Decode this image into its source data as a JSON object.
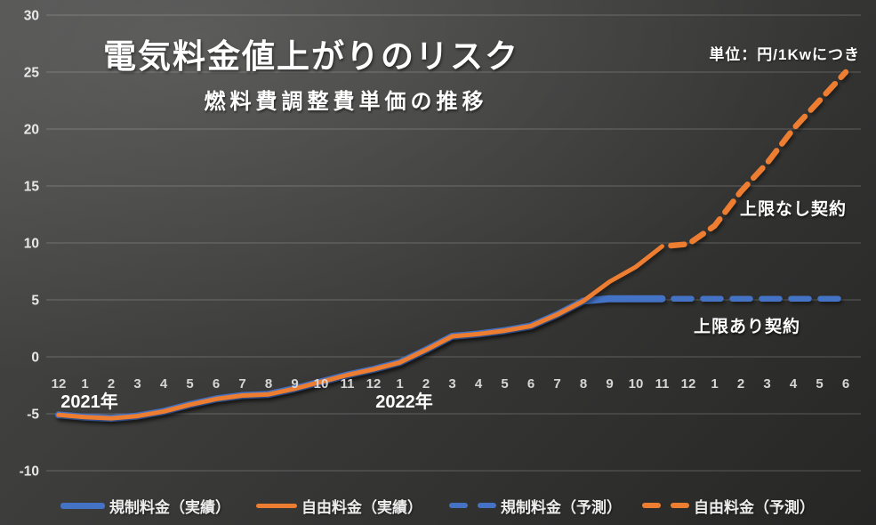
{
  "header": {
    "title": "電気料金値上がりのリスク",
    "subtitle": "燃料費調整費単価の推移",
    "unit_note": "単位：円/1Kwにつき"
  },
  "annotations": {
    "no_cap_label": "上限なし契約",
    "with_cap_label": "上限あり契約"
  },
  "colors": {
    "regulated_blue": "#4472C4",
    "free_orange": "#ED7D31",
    "gridline": "rgba(255,255,255,0.22)",
    "axis_text": "#e8e8e8",
    "month_text": "#d6d6d6",
    "year_text": "#ffffff"
  },
  "chart_data": {
    "type": "line",
    "title": "電気料金値上がりのリスク",
    "subtitle": "燃料費調整費単価の推移",
    "unit": "円/1Kwにつき",
    "grid": true,
    "ylim": [
      -10,
      30
    ],
    "y_ticks": [
      30,
      25,
      20,
      15,
      10,
      5,
      0,
      -5,
      -10
    ],
    "categories": [
      "12",
      "1",
      "2",
      "3",
      "4",
      "5",
      "6",
      "7",
      "8",
      "9",
      "10",
      "11",
      "12",
      "1",
      "2",
      "3",
      "4",
      "5",
      "6",
      "7",
      "8",
      "9",
      "10",
      "11",
      "12",
      "1",
      "2",
      "3",
      "4",
      "5",
      "6"
    ],
    "year_markers": [
      {
        "label": "2021年",
        "index": 1
      },
      {
        "label": "2022年",
        "index": 13
      }
    ],
    "series": [
      {
        "name": "規制料金（実績）",
        "style": "solid",
        "color": "#4472C4",
        "stroke_width": 8,
        "start_index": 0,
        "values": [
          -5.1,
          -5.3,
          -5.4,
          -5.2,
          -4.8,
          -4.2,
          -3.7,
          -3.4,
          -3.3,
          -2.8,
          -2.2,
          -1.6,
          -1.1,
          -0.5,
          0.6,
          1.8,
          2.0,
          2.3,
          2.7,
          3.7,
          4.9,
          5.1,
          5.1,
          5.1
        ]
      },
      {
        "name": "自由料金（実績）",
        "style": "solid",
        "color": "#ED7D31",
        "stroke_width": 5,
        "start_index": 0,
        "values": [
          -5.1,
          -5.3,
          -5.4,
          -5.2,
          -4.8,
          -4.2,
          -3.7,
          -3.4,
          -3.3,
          -2.8,
          -2.2,
          -1.6,
          -1.1,
          -0.5,
          0.6,
          1.8,
          2.0,
          2.3,
          2.7,
          3.7,
          4.9,
          6.6,
          7.9,
          9.7
        ]
      },
      {
        "name": "規制料金（予測）",
        "style": "dashed",
        "color": "#4472C4",
        "stroke_width": 6.5,
        "dash": "20 13",
        "start_index": 23,
        "values": [
          5.1,
          5.1,
          5.1,
          5.1,
          5.1,
          5.1,
          5.1,
          5.1
        ]
      },
      {
        "name": "自由料金（予測）",
        "style": "dashed",
        "color": "#ED7D31",
        "stroke_width": 6.5,
        "dash": "15 10",
        "start_index": 23,
        "values": [
          9.7,
          9.9,
          11.5,
          14.5,
          17.0,
          20.0,
          22.5,
          25.0
        ]
      }
    ]
  },
  "legend": {
    "items": [
      {
        "label": "規制料金（実績）",
        "swatch": "solid-blue"
      },
      {
        "label": "自由料金（実績）",
        "swatch": "solid-orange"
      },
      {
        "label": "規制料金（予測）",
        "swatch": "dashed-blue"
      },
      {
        "label": "自由料金（予測）",
        "swatch": "dashed-orange"
      }
    ]
  }
}
